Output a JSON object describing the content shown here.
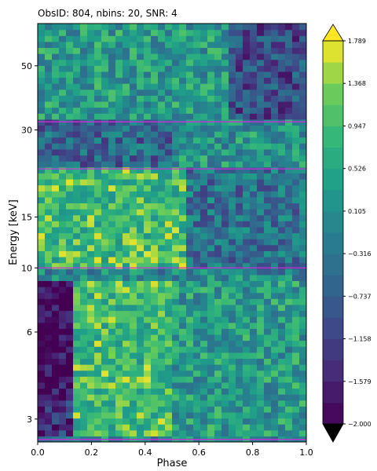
{
  "chart_data": {
    "type": "heatmap",
    "title": "ObsID: 804, nbins: 20, SNR: 4",
    "xlabel": "Phase",
    "ylabel": "Energy [keV]",
    "xlim": [
      0.0,
      1.0
    ],
    "ylim": [
      2.5,
      70
    ],
    "yscale": "log",
    "x_ticks": [
      "0.0",
      "0.2",
      "0.4",
      "0.6",
      "0.8",
      "1.0"
    ],
    "y_ticks": [
      {
        "value": 3,
        "label": "3"
      },
      {
        "value": 6,
        "label": "6"
      },
      {
        "value": 10,
        "label": "10"
      },
      {
        "value": 15,
        "label": "15"
      },
      {
        "value": 30,
        "label": "30"
      },
      {
        "value": 50,
        "label": "50"
      }
    ],
    "horizontal_lines_keV": [
      2.55,
      10,
      22,
      32
    ],
    "horizontal_line_color": "#c832d8",
    "colorbar": {
      "min": -2.0,
      "max": 1.789,
      "tick_labels": [
        "1.789",
        "1.368",
        "0.947",
        "0.526",
        "0.105",
        "−0.316",
        "−0.737",
        "−1.158",
        "−1.579",
        "−2.000"
      ],
      "extend": "both",
      "colormap": "viridis"
    },
    "regions": [
      {
        "phase": [
          0.0,
          0.14
        ],
        "energy_keV": [
          3.5,
          9
        ],
        "value": -2.0
      },
      {
        "phase": [
          0.0,
          0.14
        ],
        "energy_keV": [
          2.6,
          3.5
        ],
        "value": -1.4
      },
      {
        "phase": [
          0.14,
          0.5
        ],
        "energy_keV": [
          2.6,
          9
        ],
        "value": 0.9
      },
      {
        "phase": [
          0.5,
          1.0
        ],
        "energy_keV": [
          2.6,
          9
        ],
        "value": 0.3
      },
      {
        "phase": [
          0.0,
          0.55
        ],
        "energy_keV": [
          10,
          22
        ],
        "value": 0.9
      },
      {
        "phase": [
          0.55,
          1.0
        ],
        "energy_keV": [
          10,
          22
        ],
        "value": -0.4
      },
      {
        "phase": [
          0.0,
          0.5
        ],
        "energy_keV": [
          22,
          32
        ],
        "value": -0.6
      },
      {
        "phase": [
          0.5,
          1.0
        ],
        "energy_keV": [
          22,
          32
        ],
        "value": 0.2
      },
      {
        "phase": [
          0.0,
          1.0
        ],
        "energy_keV": [
          32,
          70
        ],
        "value": 0.3
      },
      {
        "phase": [
          0.7,
          1.0
        ],
        "energy_keV": [
          32,
          70
        ],
        "value": -1.0
      }
    ]
  }
}
